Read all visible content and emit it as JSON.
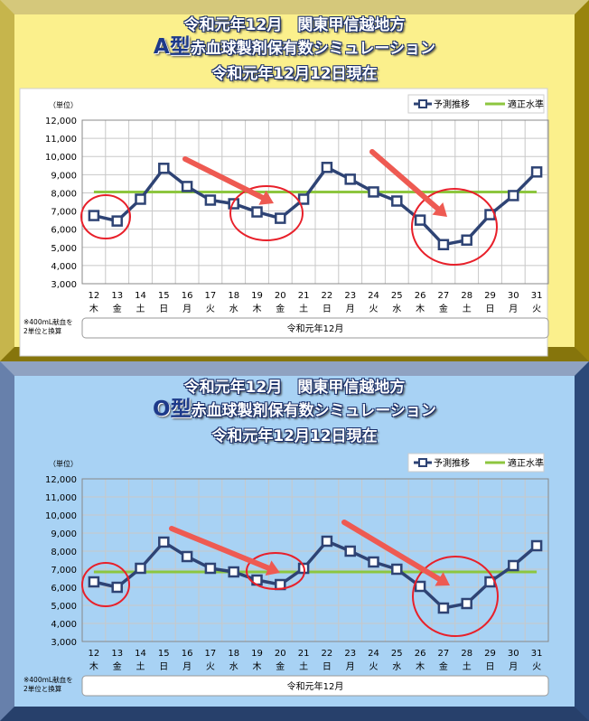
{
  "colors": {
    "series": "#2e4374",
    "target": "#8dc63f",
    "circle": "#e8202a",
    "arrow": "#ee5a52",
    "panelA": "#fbf08c",
    "panelO": "#a8d2f4"
  },
  "legend": {
    "forecast": "予測推移",
    "target": "適正水準"
  },
  "footnote": [
    "※400mL献血を",
    "2単位と換算"
  ],
  "month_label": "令和元年12月",
  "unit_label": "（単位）",
  "panels": [
    {
      "title1": "令和元年12月　関東甲信越地方",
      "blood_type": "A型",
      "title2": "赤血球製剤保有数シミュレーション",
      "title3": "令和元年12月12日現在"
    },
    {
      "title1": "令和元年12月　関東甲信越地方",
      "blood_type": "O型",
      "title2": "赤血球製剤保有数シミュレーション",
      "title3": "令和元年12月12日現在"
    }
  ],
  "chart_data": [
    {
      "type": "line",
      "categories": [
        "12",
        "13",
        "14",
        "15",
        "16",
        "17",
        "18",
        "19",
        "20",
        "21",
        "22",
        "23",
        "24",
        "25",
        "26",
        "27",
        "28",
        "29",
        "30",
        "31"
      ],
      "weekdays": [
        "木",
        "金",
        "土",
        "日",
        "月",
        "火",
        "水",
        "木",
        "金",
        "土",
        "日",
        "月",
        "火",
        "水",
        "木",
        "金",
        "土",
        "日",
        "月",
        "火"
      ],
      "ylim": [
        3000,
        12000
      ],
      "yticks": [
        "3,000",
        "4,000",
        "5,000",
        "6,000",
        "7,000",
        "8,000",
        "9,000",
        "10,000",
        "11,000",
        "12,000"
      ],
      "series": [
        {
          "name": "予測推移",
          "values": [
            6750,
            6450,
            7650,
            9350,
            8350,
            7600,
            7400,
            6950,
            6600,
            7650,
            9400,
            8750,
            8050,
            7550,
            6500,
            5150,
            5400,
            6800,
            7850,
            9150
          ]
        },
        {
          "name": "適正水準",
          "values": [
            8050,
            8050,
            8050,
            8050,
            8050,
            8050,
            8050,
            8050,
            8050,
            8050,
            8050,
            8050,
            8050,
            8050,
            8050,
            8050,
            8050,
            8050,
            8050,
            8050
          ]
        }
      ],
      "grid": true,
      "legend_position": "top-right"
    },
    {
      "type": "line",
      "categories": [
        "12",
        "13",
        "14",
        "15",
        "16",
        "17",
        "18",
        "19",
        "20",
        "21",
        "22",
        "23",
        "24",
        "25",
        "26",
        "27",
        "28",
        "29",
        "30",
        "31"
      ],
      "weekdays": [
        "木",
        "金",
        "土",
        "日",
        "月",
        "火",
        "水",
        "木",
        "金",
        "土",
        "日",
        "月",
        "火",
        "水",
        "木",
        "金",
        "土",
        "日",
        "月",
        "火"
      ],
      "ylim": [
        3000,
        12000
      ],
      "yticks": [
        "3,000",
        "4,000",
        "5,000",
        "6,000",
        "7,000",
        "8,000",
        "9,000",
        "10,000",
        "11,000",
        "12,000"
      ],
      "series": [
        {
          "name": "予測推移",
          "values": [
            6300,
            6000,
            7050,
            8500,
            7700,
            7050,
            6850,
            6400,
            6150,
            7050,
            8550,
            8000,
            7400,
            7000,
            6050,
            4850,
            5100,
            6300,
            7200,
            8300
          ]
        },
        {
          "name": "適正水準",
          "values": [
            6850,
            6850,
            6850,
            6850,
            6850,
            6850,
            6850,
            6850,
            6850,
            6850,
            6850,
            6850,
            6850,
            6850,
            6850,
            6850,
            6850,
            6850,
            6850,
            6850
          ]
        }
      ],
      "grid": true,
      "legend_position": "top-right"
    }
  ]
}
